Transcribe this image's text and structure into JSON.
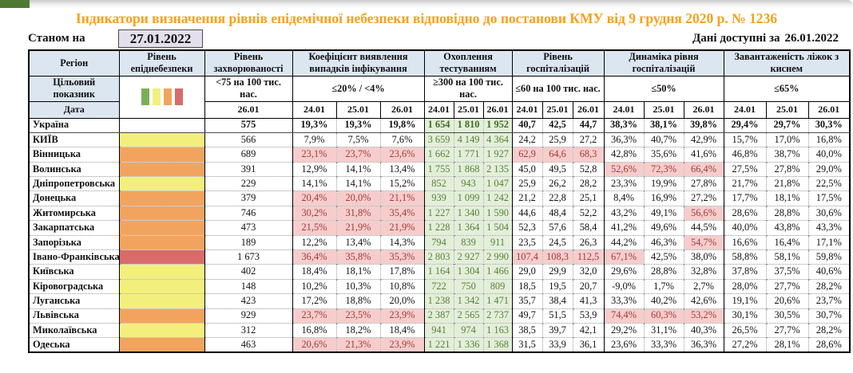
{
  "title": "Індикатори визначення рівнів епідемічної небезпеки відповідно до постанови КМУ від 9 грудня 2020 р. № 1236",
  "as_of": {
    "label": "Станом на",
    "date": "27.01.2022"
  },
  "data_available": {
    "label": "Дані доступні за",
    "date": "26.01.2022"
  },
  "colors": {
    "title": "#F9A01B",
    "green_tab": "#4E7A33",
    "header_bg": "#DCE6F1",
    "date_box_bg": "#E4DFEC",
    "flag_bg": "#F6CDCC",
    "flag_text": "#9E3A38",
    "testing_bg": "#E3EFD9",
    "testing_text": "#57803B",
    "levels": {
      "green": "#7CAE57",
      "yellow": "#F3EF7D",
      "orange": "#F2A45E",
      "red": "#D96B6B"
    }
  },
  "table": {
    "dates": [
      "24.01",
      "25.01",
      "26.01"
    ],
    "level_squares": [
      "green",
      "yellow",
      "orange",
      "red"
    ],
    "groups": {
      "region": {
        "label": "Регіон",
        "target_label": "Цільовий показник",
        "date_label": "Дата"
      },
      "level": {
        "label": "Рівень епіднебезпеки"
      },
      "incidence": {
        "label": "Рівень захворюваності",
        "target": "<75 на 100 тис. нас.",
        "date": "26.01"
      },
      "detection": {
        "label": "Коефіцієнт виявлення випадків інфікування",
        "target": "≤20% / <4%"
      },
      "testing": {
        "label": "Охоплення тестуванням",
        "target": "≥300 на 100 тис. нас."
      },
      "hosp": {
        "label": "Рівень госпіталізацій",
        "target": "≤60 на 100 тис. нас."
      },
      "dynamics": {
        "label": "Динаміка рівня госпіталізацій",
        "target": "≤50%"
      },
      "beds": {
        "label": "Завантаженість ліжок з киснем",
        "target": "≤65%"
      }
    },
    "rows": [
      {
        "region": "Україна",
        "bold": true,
        "level": "none",
        "incidence": "575",
        "detection": [
          "19,3%",
          "19,3%",
          "19,8%"
        ],
        "testing": [
          "1 654",
          "1 810",
          "1 952"
        ],
        "hosp": [
          "40,7",
          "42,5",
          "44,7"
        ],
        "dynamics": [
          "38,3%",
          "38,1%",
          "39,8%"
        ],
        "beds": [
          "29,4%",
          "29,7%",
          "30,3%"
        ]
      },
      {
        "region": "КИЇВ",
        "level": "yellow",
        "incidence": "566",
        "detection": [
          "7,9%",
          "7,5%",
          "7,6%"
        ],
        "testing": [
          "3 659",
          "4 149",
          "4 364"
        ],
        "hosp": [
          "24,2",
          "25,9",
          "27,2"
        ],
        "dynamics": [
          "36,3%",
          "40,7%",
          "42,9%"
        ],
        "beds": [
          "15,7%",
          "17,0%",
          "16,8%"
        ]
      },
      {
        "region": "Вінницька",
        "level": "orange",
        "incidence": "689",
        "detection": [
          "23,1%",
          "23,7%",
          "23,6%"
        ],
        "detection_flags": [
          1,
          1,
          1
        ],
        "testing": [
          "1 662",
          "1 771",
          "1 927"
        ],
        "hosp": [
          "62,9",
          "64,6",
          "68,3"
        ],
        "hosp_flags": [
          1,
          1,
          1
        ],
        "dynamics": [
          "42,8%",
          "35,6%",
          "41,6%"
        ],
        "beds": [
          "46,8%",
          "38,7%",
          "40,0%"
        ]
      },
      {
        "region": "Волинська",
        "level": "orange",
        "incidence": "391",
        "detection": [
          "12,9%",
          "14,1%",
          "13,4%"
        ],
        "testing": [
          "1 755",
          "1 868",
          "2 135"
        ],
        "hosp": [
          "45,0",
          "49,5",
          "52,8"
        ],
        "dynamics": [
          "52,6%",
          "72,3%",
          "66,4%"
        ],
        "dynamics_flags": [
          1,
          1,
          1
        ],
        "beds": [
          "27,5%",
          "27,8%",
          "29,0%"
        ]
      },
      {
        "region": "Дніпропетровська",
        "level": "yellow",
        "incidence": "229",
        "detection": [
          "14,1%",
          "14,1%",
          "15,2%"
        ],
        "testing": [
          "852",
          "943",
          "1 047"
        ],
        "hosp": [
          "25,9",
          "26,2",
          "28,2"
        ],
        "dynamics": [
          "23,3%",
          "19,9%",
          "27,8%"
        ],
        "beds": [
          "21,7%",
          "21,8%",
          "22,5%"
        ]
      },
      {
        "region": "Донецька",
        "level": "orange",
        "incidence": "379",
        "detection": [
          "20,4%",
          "20,0%",
          "21,1%"
        ],
        "detection_flags": [
          1,
          1,
          1
        ],
        "testing": [
          "939",
          "1 099",
          "1 242"
        ],
        "hosp": [
          "21,2",
          "22,8",
          "25,1"
        ],
        "dynamics": [
          "8,4%",
          "16,9%",
          "27,2%"
        ],
        "beds": [
          "17,7%",
          "18,1%",
          "17,5%"
        ]
      },
      {
        "region": "Житомирська",
        "level": "orange",
        "incidence": "746",
        "detection": [
          "30,2%",
          "31,8%",
          "35,4%"
        ],
        "detection_flags": [
          1,
          1,
          1
        ],
        "testing": [
          "1 227",
          "1 340",
          "1 590"
        ],
        "hosp": [
          "44,6",
          "48,4",
          "52,2"
        ],
        "dynamics": [
          "43,2%",
          "49,1%",
          "56,6%"
        ],
        "dynamics_flags": [
          0,
          0,
          1
        ],
        "beds": [
          "28,6%",
          "28,8%",
          "30,6%"
        ]
      },
      {
        "region": "Закарпатська",
        "level": "orange",
        "incidence": "473",
        "detection": [
          "21,5%",
          "21,9%",
          "21,9%"
        ],
        "detection_flags": [
          1,
          1,
          1
        ],
        "testing": [
          "1 228",
          "1 364",
          "1 504"
        ],
        "hosp": [
          "52,3",
          "57,6",
          "58,4"
        ],
        "dynamics": [
          "41,2%",
          "49,6%",
          "44,5%"
        ],
        "beds": [
          "40,0%",
          "43,8%",
          "43,3%"
        ]
      },
      {
        "region": "Запорізька",
        "level": "orange",
        "incidence": "189",
        "detection": [
          "12,2%",
          "13,4%",
          "14,3%"
        ],
        "testing": [
          "794",
          "839",
          "911"
        ],
        "hosp": [
          "23,5",
          "24,5",
          "26,3"
        ],
        "dynamics": [
          "44,2%",
          "46,3%",
          "54,7%"
        ],
        "dynamics_flags": [
          0,
          0,
          1
        ],
        "beds": [
          "16,6%",
          "16,4%",
          "17,1%"
        ]
      },
      {
        "region": "Івано-Франківська",
        "level": "red",
        "incidence": "1 673",
        "detection": [
          "36,4%",
          "35,8%",
          "35,3%"
        ],
        "detection_flags": [
          1,
          1,
          1
        ],
        "testing": [
          "2 803",
          "2 927",
          "2 990"
        ],
        "hosp": [
          "107,4",
          "108,3",
          "112,5"
        ],
        "hosp_flags": [
          1,
          1,
          1
        ],
        "dynamics": [
          "67,1%",
          "42,5%",
          "38,0%"
        ],
        "dynamics_flags": [
          1,
          0,
          0
        ],
        "beds": [
          "58,8%",
          "58,1%",
          "59,8%"
        ]
      },
      {
        "region": "Київська",
        "level": "yellow",
        "incidence": "402",
        "detection": [
          "18,4%",
          "18,1%",
          "17,8%"
        ],
        "testing": [
          "1 164",
          "1 304",
          "1 466"
        ],
        "hosp": [
          "29,0",
          "29,9",
          "32,0"
        ],
        "dynamics": [
          "29,6%",
          "28,8%",
          "32,8%"
        ],
        "beds": [
          "37,8%",
          "37,5%",
          "40,6%"
        ]
      },
      {
        "region": "Кіровоградська",
        "level": "yellow",
        "incidence": "148",
        "detection": [
          "10,2%",
          "10,3%",
          "10,8%"
        ],
        "testing": [
          "722",
          "750",
          "809"
        ],
        "hosp": [
          "18,5",
          "19,5",
          "20,7"
        ],
        "dynamics": [
          "-9,0%",
          "1,7%",
          "2,7%"
        ],
        "beds": [
          "28,0%",
          "27,7%",
          "28,2%"
        ]
      },
      {
        "region": "Луганська",
        "level": "yellow",
        "incidence": "423",
        "detection": [
          "17,2%",
          "18,8%",
          "20,0%"
        ],
        "testing": [
          "1 238",
          "1 342",
          "1 471"
        ],
        "hosp": [
          "35,7",
          "38,4",
          "41,3"
        ],
        "dynamics": [
          "33,3%",
          "40,2%",
          "42,6%"
        ],
        "beds": [
          "19,1%",
          "20,6%",
          "23,7%"
        ]
      },
      {
        "region": "Львівська",
        "level": "orange",
        "incidence": "929",
        "detection": [
          "23,7%",
          "23,5%",
          "23,9%"
        ],
        "detection_flags": [
          1,
          1,
          1
        ],
        "testing": [
          "2 387",
          "2 565",
          "2 737"
        ],
        "hosp": [
          "49,7",
          "51,5",
          "53,9"
        ],
        "dynamics": [
          "74,4%",
          "60,3%",
          "53,2%"
        ],
        "dynamics_flags": [
          1,
          1,
          1
        ],
        "beds": [
          "30,1%",
          "30,5%",
          "30,7%"
        ]
      },
      {
        "region": "Миколаївська",
        "level": "yellow",
        "incidence": "312",
        "detection": [
          "16,8%",
          "18,2%",
          "18,4%"
        ],
        "testing": [
          "941",
          "974",
          "1 163"
        ],
        "hosp": [
          "38,5",
          "39,7",
          "42,1"
        ],
        "dynamics": [
          "29,2%",
          "31,1%",
          "40,3%"
        ],
        "beds": [
          "26,5%",
          "27,7%",
          "28,2%"
        ]
      },
      {
        "region": "Одеська",
        "level": "orange",
        "incidence": "463",
        "detection": [
          "20,6%",
          "21,3%",
          "23,9%"
        ],
        "detection_flags": [
          1,
          1,
          1
        ],
        "testing": [
          "1 221",
          "1 336",
          "1 368"
        ],
        "hosp": [
          "31,5",
          "33,9",
          "36,1"
        ],
        "dynamics": [
          "23,6%",
          "33,3%",
          "36,3%"
        ],
        "beds": [
          "27,2%",
          "28,1%",
          "28,6%"
        ]
      }
    ]
  }
}
